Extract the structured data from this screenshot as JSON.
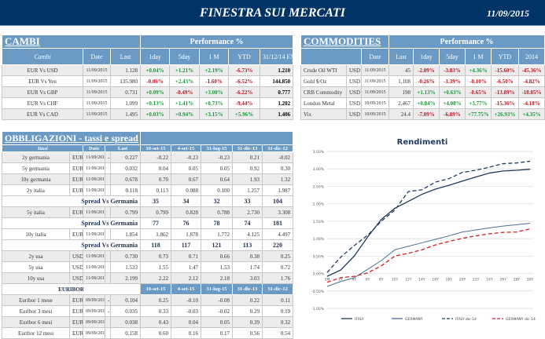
{
  "header": {
    "title": "FINESTRA SUI MERCATI",
    "date": "11/09/2015"
  },
  "cambi": {
    "title": "CAMBI",
    "performance": "Performance  %",
    "columns": [
      "Cambi",
      "Date",
      "Last",
      "1day",
      "5day",
      "1 M",
      "YTD",
      "31/12/14 FX"
    ],
    "rows": [
      [
        "EUR Vs USD",
        "11/09/2015",
        "1.128",
        "+0.04%",
        "+1.21%",
        "+2.19%",
        "-6.73%",
        "1.210"
      ],
      [
        "EUR Vs Yen",
        "11/09/2015",
        "135.980",
        "-0.06%",
        "+2.43%",
        "-1.60%",
        "-6.52%",
        "144.850"
      ],
      [
        "EUR Vs GBP",
        "11/09/2015",
        "0.731",
        "+0.09%",
        "-0.49%",
        "+3.00%",
        "-6.22%",
        "0.777"
      ],
      [
        "EUR Vs CHF",
        "11/09/2015",
        "1.099",
        "+0.13%",
        "+1.41%",
        "+0.73%",
        "-9.44%",
        "1.202"
      ],
      [
        "EUR Vs CAD",
        "11/09/2015",
        "1.495",
        "+0.03%",
        "+0.94%",
        "+3.15%",
        "+5.96%",
        "1.406"
      ]
    ]
  },
  "commodities": {
    "title": "COMMODITIES",
    "performance": "Performance  %",
    "columns": [
      "",
      "Date",
      "Last",
      "1day",
      "5day",
      "1 M",
      "YTD",
      "2014"
    ],
    "rows": [
      [
        "Crude Oil WTI",
        "USD",
        "11/09/2015",
        "45",
        "-2.09%",
        "-3.83%",
        "+4.36%",
        "-15.60%",
        "-45.36%"
      ],
      [
        "Gold $/Oz",
        "USD",
        "11/09/2015",
        "1,108",
        "-0.26%",
        "-1.39%",
        "-0.10%",
        "-6.50%",
        "-4.82%"
      ],
      [
        "CRB Commodity",
        "USD",
        "11/09/2015",
        "198",
        "+1.13%",
        "+0.63%",
        "-0.65%",
        "-13.89%",
        "-18.85%"
      ],
      [
        "London Metal",
        "USD",
        "10/09/2015",
        "2,467",
        "+0.84%",
        "+4.08%",
        "+3.77%",
        "-15.36%",
        "-4.18%"
      ],
      [
        "Vix",
        "USD",
        "10/09/2015",
        "24.4",
        "-7.09%",
        "-6.89%",
        "+77.75%",
        "+26.93%",
        "+4.35%"
      ]
    ]
  },
  "obbligazioni": {
    "title": "OBBLIGAZIONI - tassi e spread",
    "columns": [
      "Tassi",
      "Date",
      "Last",
      "10-set-15",
      "4-set-15",
      "31-lug-15",
      "31-dic-13",
      "31-dic-12"
    ],
    "rows": [
      {
        "type": "row",
        "v": [
          "2y germania",
          "EUR",
          "11/09/2015",
          "-",
          "0.227",
          "-0.22",
          "-0.23",
          "-0.23",
          "0.21",
          "-0.02"
        ]
      },
      {
        "type": "row",
        "v": [
          "5y germania",
          "EUR",
          "11/09/2015",
          "",
          "0.032",
          "0.04",
          "0.05",
          "0.05",
          "0.92",
          "0.30"
        ]
      },
      {
        "type": "row",
        "v": [
          "10y germania",
          "EUR",
          "11/09/2015",
          "",
          "0.678",
          "0.70",
          "0.67",
          "0.64",
          "1.93",
          "1.32"
        ]
      },
      {
        "type": "row",
        "v": [
          "2y italia",
          "EUR",
          "11/09/2015",
          "",
          "0.118",
          "0.113",
          "0.088",
          "0.100",
          "1.257",
          "1.987"
        ]
      },
      {
        "type": "spread",
        "v": [
          "Spread Vs Germania",
          "35",
          "34",
          "32",
          "33",
          "104",
          "200"
        ]
      },
      {
        "type": "row",
        "v": [
          "5y italia",
          "EUR",
          "11/09/2015",
          "",
          "0.799",
          "0.799",
          "0.828",
          "0.788",
          "2.730",
          "3.308"
        ]
      },
      {
        "type": "spread",
        "v": [
          "Spread Vs Germania",
          "77",
          "76",
          "78",
          "74",
          "181",
          "301"
        ]
      },
      {
        "type": "row",
        "v": [
          "10y italia",
          "EUR",
          "11/09/2015",
          "",
          "1.854",
          "1.862",
          "1.878",
          "1.772",
          "4.125",
          "4.497"
        ]
      },
      {
        "type": "spread",
        "v": [
          "Spread Vs Germania",
          "118",
          "117",
          "121",
          "113",
          "220",
          "318"
        ]
      },
      {
        "type": "row",
        "v": [
          "2y usa",
          "USD",
          "11/09/2015",
          "",
          "0.730",
          "0.73",
          "0.71",
          "0.66",
          "0.38",
          "0.25"
        ]
      },
      {
        "type": "row",
        "v": [
          "5y usa",
          "USD",
          "11/09/2015",
          "",
          "1.533",
          "1.55",
          "1.47",
          "1.53",
          "1.74",
          "0.72"
        ]
      },
      {
        "type": "row",
        "v": [
          "10y usa",
          "USD",
          "11/09/2015",
          "",
          "2.199",
          "2.22",
          "2.12",
          "2.18",
          "3.03",
          "1.76"
        ]
      },
      {
        "type": "head",
        "v": [
          "EURIBOR",
          "10-set-15",
          "4-set-15",
          "31-lug-15",
          "31-dic-13",
          "31-dic-12"
        ]
      },
      {
        "type": "row",
        "v": [
          "Euribor 1 mese",
          "EUR",
          "09/09/2015",
          "-",
          "0.104",
          "0.25",
          "-0.10",
          "-0.08",
          "0.22",
          "0.11"
        ]
      },
      {
        "type": "row",
        "v": [
          "Euribor 3 mesi",
          "EUR",
          "09/09/2015",
          "-",
          "0.035",
          "0.33",
          "-0.03",
          "-0.02",
          "0.29",
          "0.19"
        ]
      },
      {
        "type": "row",
        "v": [
          "Euribor 6 mesi",
          "EUR",
          "09/09/2015",
          "",
          "0.038",
          "0.43",
          "0.04",
          "0.05",
          "0.39",
          "0.32"
        ]
      },
      {
        "type": "row",
        "v": [
          "Euribor 12 mesi",
          "EUR",
          "09/09/2015",
          "",
          "0.158",
          "0.60",
          "0.16",
          "0.17",
          "0.56",
          "0.54"
        ]
      }
    ]
  },
  "chart_data": {
    "type": "line",
    "title": "Rendimenti",
    "categories": [
      "3M",
      "2Y",
      "4Y",
      "6Y",
      "8Y",
      "10Y",
      "12Y",
      "14Y",
      "16Y",
      "18Y",
      "20Y",
      "22Y",
      "24Y",
      "26Y",
      "28Y",
      "30Y"
    ],
    "yticks": [
      "3.50%",
      "3.00%",
      "2.50%",
      "2.00%",
      "1.50%",
      "1.00%",
      "0.50%",
      "0.00%",
      "-0.50%",
      "-1.00%"
    ],
    "ylim": [
      -1.0,
      3.5
    ],
    "grid": true,
    "legend": "bottom",
    "series": [
      {
        "name": "ITALY",
        "color": "#1f3a5f",
        "dash": false,
        "values": [
          -0.08,
          0.1,
          0.5,
          1.05,
          1.55,
          1.87,
          2.07,
          2.27,
          2.42,
          2.53,
          2.65,
          2.77,
          2.88,
          2.94,
          2.96,
          2.99
        ]
      },
      {
        "name": "GERMANY",
        "color": "#4a6f95",
        "dash": false,
        "values": [
          -0.37,
          -0.23,
          -0.12,
          0.12,
          0.37,
          0.68,
          0.78,
          0.88,
          0.98,
          1.08,
          1.19,
          1.25,
          1.31,
          1.36,
          1.4,
          1.44
        ]
      },
      {
        "name": "ITALY dic-14",
        "color": "#1f3a5f",
        "dash": true,
        "values": [
          0.03,
          0.47,
          0.8,
          1.1,
          1.5,
          1.82,
          2.35,
          2.4,
          2.62,
          2.72,
          2.9,
          2.96,
          3.05,
          3.15,
          3.17,
          3.22
        ]
      },
      {
        "name": "GERMANY dic-14",
        "color": "#d42020",
        "dash": true,
        "values": [
          -0.25,
          -0.12,
          -0.08,
          0.02,
          0.22,
          0.5,
          0.58,
          0.68,
          0.82,
          0.92,
          1.01,
          1.08,
          1.14,
          1.18,
          1.19,
          1.28
        ]
      }
    ]
  }
}
